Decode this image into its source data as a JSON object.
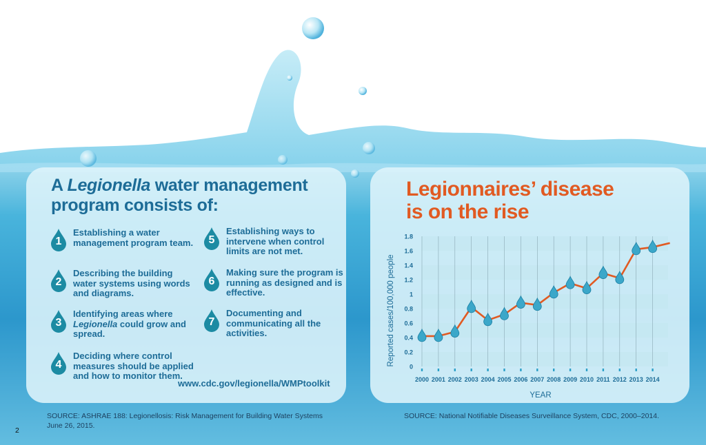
{
  "left_panel": {
    "title_prefix": "A",
    "title_italic": "Legionella",
    "title_rest_line1": "water management",
    "title_line2": "program consists of:",
    "items": [
      {
        "number": "1",
        "text": "Establishing a water management program team."
      },
      {
        "number": "2",
        "text": "Describing the building water systems using words and diagrams."
      },
      {
        "number": "3",
        "text_before": "Identifying areas where",
        "text_italic": "Legionella",
        "text_after": "could grow and spread."
      },
      {
        "number": "4",
        "text": "Deciding where control measures should be applied and how to monitor them."
      },
      {
        "number": "5",
        "text": "Establishing ways to intervene when control limits are not met."
      },
      {
        "number": "6",
        "text": "Making sure the program is running as designed and is effective."
      },
      {
        "number": "7",
        "text": "Documenting and communicating all the activities."
      }
    ],
    "url": "www.cdc.gov/legionella/WMPtoolkit",
    "source_line1": "SOURCE: ASHRAE 188: Legionellosis: Risk Management for Building Water Systems",
    "source_line2": "June 26, 2015."
  },
  "right_panel": {
    "title_line1": "Legionnaires’ disease",
    "title_line2": "is on the rise",
    "source": "SOURCE: National Notifiable Diseases Surveillance System, CDC, 2000–2014."
  },
  "page_number": "2",
  "colors": {
    "title_blue": "#1d6c97",
    "orange": "#e15a22",
    "drop_teal": "#1c8ba3",
    "marker_blue": "#3ba7c9"
  },
  "chart_data": {
    "type": "line",
    "title": "",
    "xlabel": "YEAR",
    "ylabel": "Reported cases/100,000 people",
    "ylim": [
      0,
      1.8
    ],
    "yticks": [
      "0",
      "0.2",
      "0.4",
      "0.6",
      "0.8",
      "1",
      "1.2",
      "1.4",
      "1.6",
      "1.8"
    ],
    "categories": [
      "2000",
      "2001",
      "2002",
      "2003",
      "2004",
      "2005",
      "2006",
      "2007",
      "2008",
      "2009",
      "2010",
      "2011",
      "2012",
      "2013",
      "2014"
    ],
    "series": [
      {
        "values": [
          0.42,
          0.42,
          0.48,
          0.82,
          0.64,
          0.72,
          0.88,
          0.85,
          1.02,
          1.15,
          1.08,
          1.29,
          1.22,
          1.62,
          1.65
        ]
      }
    ],
    "grid": true,
    "marker": "water-drop"
  }
}
